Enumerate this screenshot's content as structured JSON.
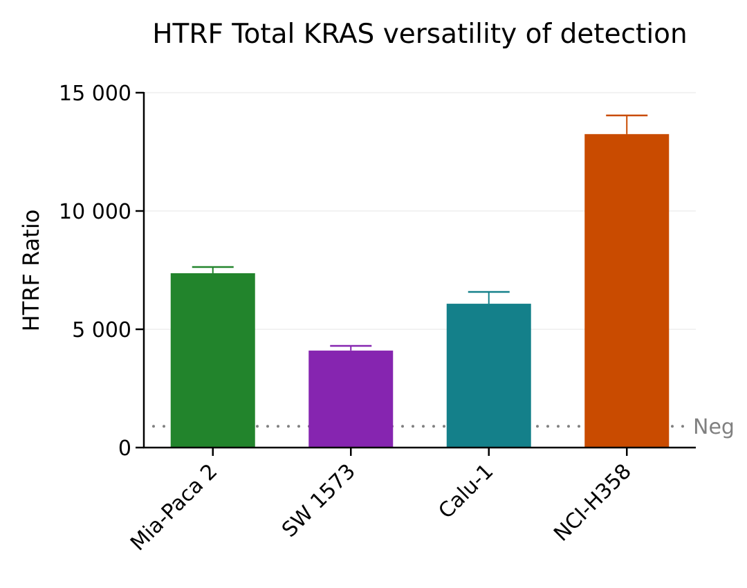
{
  "chart_data": {
    "type": "bar",
    "title": "HTRF Total KRAS versatility of detection",
    "xlabel": "",
    "ylabel": "HTRF Ratio",
    "ylim": [
      0,
      15000
    ],
    "yticks": [
      0,
      5000,
      10000,
      15000
    ],
    "ytick_labels": [
      "0",
      "5 000",
      "10 000",
      "15 000"
    ],
    "grid": true,
    "categories": [
      "Mia-Paca 2",
      "SW 1573",
      "Calu-1",
      "NCI-H358"
    ],
    "values": [
      7370,
      4100,
      6080,
      13250
    ],
    "error_upper": [
      7630,
      4300,
      6580,
      14040
    ],
    "colors": [
      "#22842c",
      "#8625b0",
      "#14808a",
      "#c94b00"
    ],
    "reference_line": {
      "label": "Neg",
      "value": 900,
      "color": "#808080",
      "style": "dotted"
    }
  }
}
